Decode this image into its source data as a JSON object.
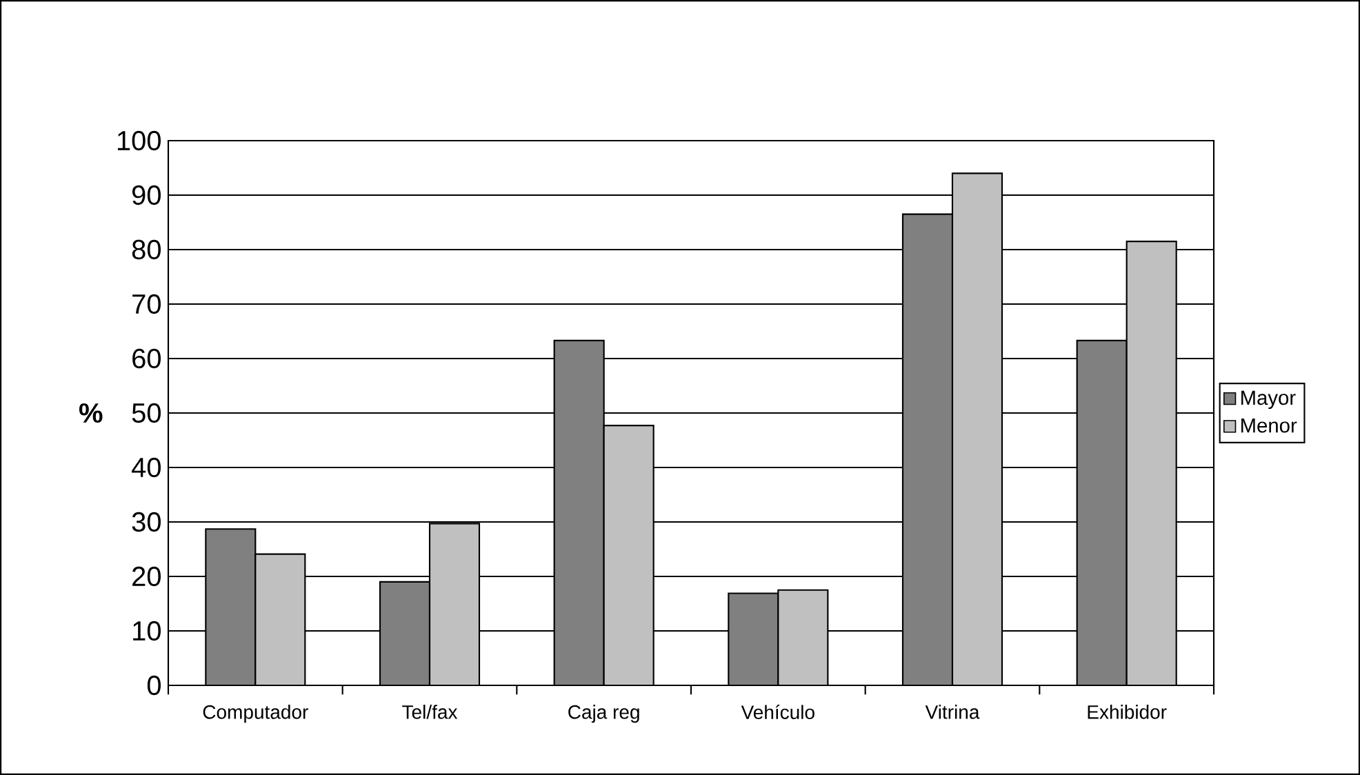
{
  "chart_data": {
    "type": "bar",
    "ylabel": "**%**",
    "categories": [
      "Computador",
      "Tel/fax",
      "Caja reg",
      "Vehículo",
      "Vitrina",
      "Exhibidor"
    ],
    "series": [
      {
        "name": "Mayor",
        "color": "#808080",
        "values": [
          28.7,
          19.0,
          63.3,
          16.9,
          86.5,
          63.3
        ]
      },
      {
        "name": "Menor",
        "color": "#c0c0c0",
        "values": [
          24.1,
          29.7,
          47.7,
          17.5,
          94.0,
          81.5
        ]
      }
    ],
    "ylim": [
      0,
      100
    ],
    "yticks": [
      0,
      10,
      20,
      30,
      40,
      50,
      60,
      70,
      80,
      90,
      100
    ],
    "grid": "y",
    "legend": "right"
  }
}
